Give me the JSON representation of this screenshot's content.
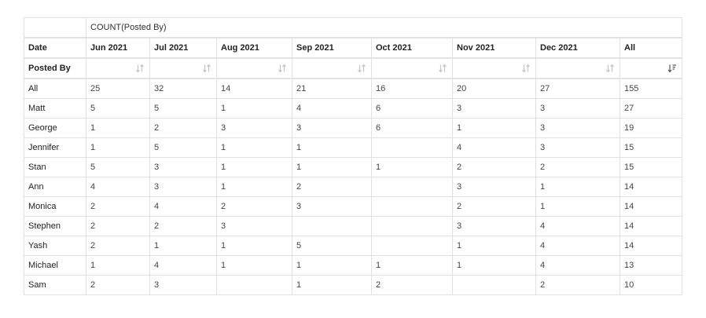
{
  "header": {
    "measure_label": "COUNT(Posted By)",
    "column_dimension": "Date",
    "row_dimension": "Posted By"
  },
  "columns": [
    "Jun 2021",
    "Jul 2021",
    "Aug 2021",
    "Sep 2021",
    "Oct 2021",
    "Nov 2021",
    "Dec 2021",
    "All"
  ],
  "rows": [
    {
      "label": "All",
      "values": [
        "25",
        "32",
        "14",
        "21",
        "16",
        "20",
        "27",
        "155"
      ]
    },
    {
      "label": "Matt",
      "values": [
        "5",
        "5",
        "1",
        "4",
        "6",
        "3",
        "3",
        "27"
      ]
    },
    {
      "label": "George",
      "values": [
        "1",
        "2",
        "3",
        "3",
        "6",
        "1",
        "3",
        "19"
      ]
    },
    {
      "label": "Jennifer",
      "values": [
        "1",
        "5",
        "1",
        "1",
        "",
        "4",
        "3",
        "15"
      ]
    },
    {
      "label": "Stan",
      "values": [
        "5",
        "3",
        "1",
        "1",
        "1",
        "2",
        "2",
        "15"
      ]
    },
    {
      "label": "Ann",
      "values": [
        "4",
        "3",
        "1",
        "2",
        "",
        "3",
        "1",
        "14"
      ]
    },
    {
      "label": "Monica",
      "values": [
        "2",
        "4",
        "2",
        "3",
        "",
        "2",
        "1",
        "14"
      ]
    },
    {
      "label": "Stephen",
      "values": [
        "2",
        "2",
        "3",
        "",
        "",
        "3",
        "4",
        "14"
      ]
    },
    {
      "label": "Yash",
      "values": [
        "2",
        "1",
        "1",
        "5",
        "",
        "1",
        "4",
        "14"
      ]
    },
    {
      "label": "Michael",
      "values": [
        "1",
        "4",
        "1",
        "1",
        "1",
        "1",
        "4",
        "13"
      ]
    },
    {
      "label": "Sam",
      "values": [
        "2",
        "3",
        "",
        "1",
        "2",
        "",
        "2",
        "10"
      ]
    }
  ],
  "sort_icons": [
    "sort-icon",
    "sort-icon",
    "sort-icon",
    "sort-icon",
    "sort-icon",
    "sort-icon",
    "sort-icon",
    "sort-desc-active-icon"
  ],
  "colors": {
    "border": "#e2e2e2",
    "sort_icon_inactive": "#c4c4c4",
    "sort_icon_active": "#555555",
    "text": "#303030"
  }
}
